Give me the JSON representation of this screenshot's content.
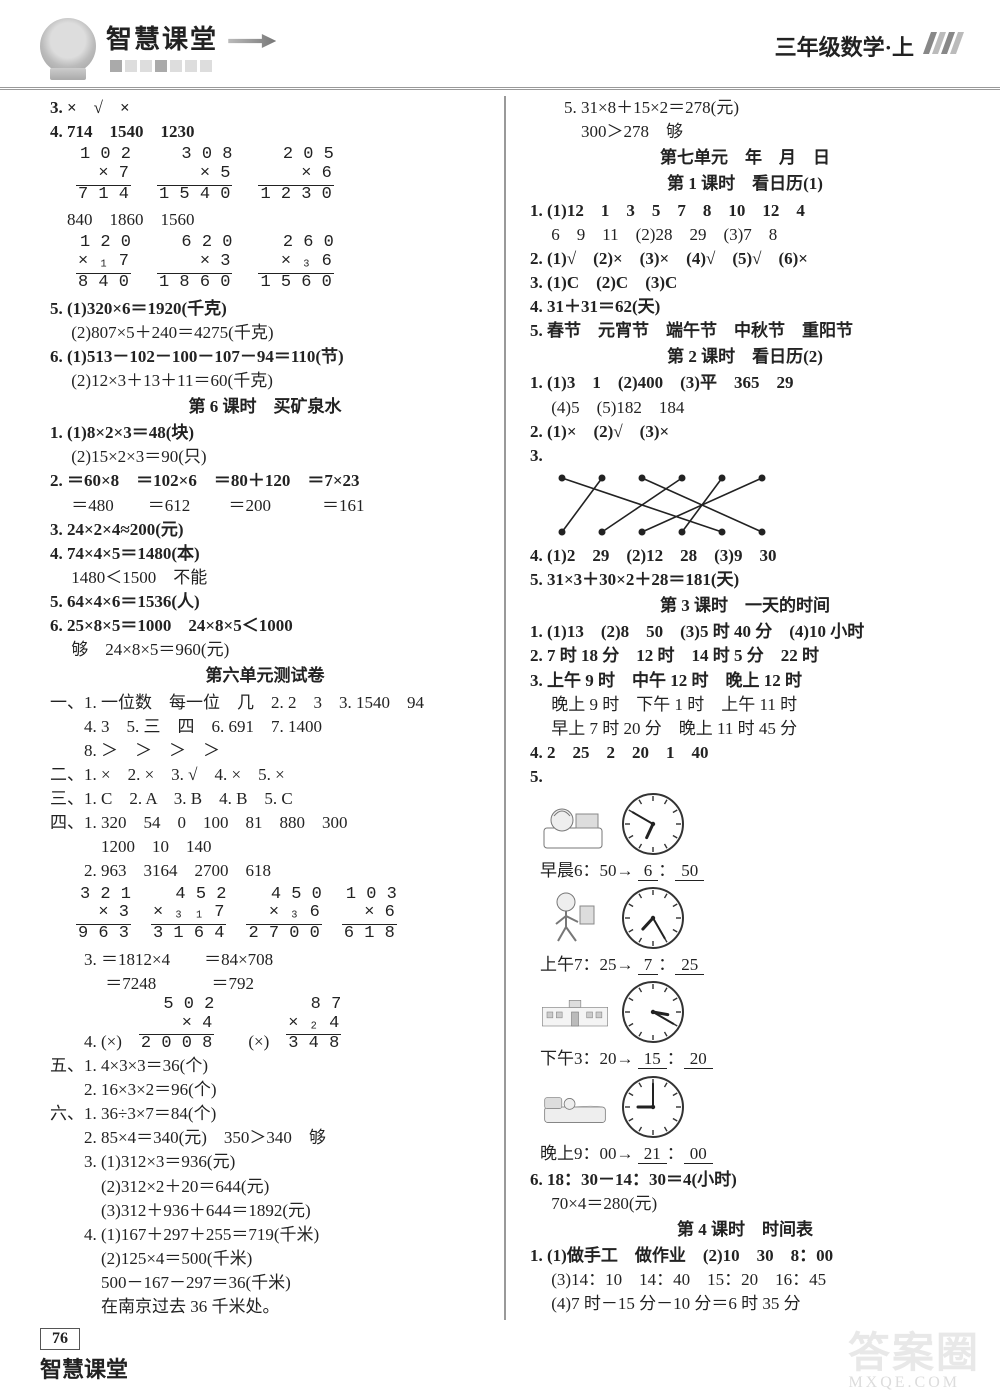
{
  "header": {
    "brand": "智慧课堂",
    "right": "三年级数学·上"
  },
  "footer": {
    "page": "76",
    "brand": "智慧课堂"
  },
  "watermark": {
    "big": "答案圈",
    "url": "MXQE.COM"
  },
  "left": {
    "l3": "3. ×　√　×",
    "l4": "4. 714　1540　1230",
    "m1": [
      {
        "a": "1 0 2",
        "b": "×     7",
        "c": "7 1 4"
      },
      {
        "a": "3 0 8",
        "b": "×     5",
        "c": "1 5 4 0"
      },
      {
        "a": "2 0 5",
        "b": "×     6",
        "c": "1 2 3 0"
      }
    ],
    "l4b": "　840　1860　1560",
    "m2": [
      {
        "a": "1 2 0",
        "b": "× ₁ 7",
        "c": "8 4 0"
      },
      {
        "a": "6 2 0",
        "b": "×     3",
        "c": "1 8 6 0"
      },
      {
        "a": "2 6 0",
        "b": "× ₃ 6",
        "c": "1 5 6 0"
      }
    ],
    "l5a": "5. (1)320×6＝1920(千克)",
    "l5b": "　 (2)807×5＋240＝4275(千克)",
    "l6a": "6. (1)513－102－100－107－94＝110(节)",
    "l6b": "　 (2)12×3＋13＋11＝60(千克)",
    "t6": "第 6 课时　买矿泉水",
    "k1a": "1. (1)8×2×3＝48(块)",
    "k1b": "　 (2)15×2×3＝90(只)",
    "k2a": "2. ＝60×8　＝102×6　＝80＋120　＝7×23",
    "k2b": "　 ＝480　　＝612　　 ＝200　　　＝161",
    "k3": "3. 24×2×4≈200(元)",
    "k4a": "4. 74×4×5＝1480(本)",
    "k4b": "　 1480＜1500　不能",
    "k5": "5. 64×4×6＝1536(人)",
    "k6a": "6. 25×8×5＝1000　24×8×5＜1000",
    "k6b": "　 够　24×8×5＝960(元)",
    "tu": "第六单元测试卷",
    "y1a": "一、1. 一位数　每一位　几　2. 2　3　3. 1540　94",
    "y1b": "　　4. 3　5. 三　四　6. 691　7. 1400",
    "y1c": "　　8. ＞　＞　＞　＞",
    "y2": "二、1. ×　2. ×　3. √　4. ×　5. ×",
    "y3": "三、1. C　2. A　3. B　4. B　5. C",
    "y4a": "四、1. 320　54　0　100　81　880　300",
    "y4b": "　　　1200　10　140",
    "y4c": "　　2. 963　3164　2700　618",
    "m3": [
      {
        "a": "3 2 1",
        "b": "×     3",
        "c": "9 6 3"
      },
      {
        "a": "4 5 2",
        "b": "× ₃ ₁ 7",
        "c": "3 1 6 4"
      },
      {
        "a": "4 5 0",
        "b": "× ₃ 6",
        "c": "2 7 0 0"
      },
      {
        "a": "1 0 3",
        "b": "×     6",
        "c": "6 1 8"
      }
    ],
    "y4d": "　　3. ＝1812×4　　＝84×708",
    "y4e": "　　　 ＝7248　　　 ＝792",
    "m4a": {
      "a": "5 0 2",
      "b": "×     4",
      "c": "2 0 0 8"
    },
    "m4b": {
      "a": "8 7",
      "b": "× ₂ 4",
      "c": "3 4 8"
    },
    "y4f_pre": "　　4. (×)　",
    "y4f_mid": "　　(×)　",
    "y5a": "五、1. 4×3×3＝36(个)",
    "y5b": "　　2. 16×3×2＝96(个)",
    "y6a": "六、1. 36÷3×7＝84(个)",
    "y6b": "　　2. 85×4＝340(元)　350＞340　够",
    "y6c": "　　3. (1)312×3＝936(元)",
    "y6d": "　　　(2)312×2＋20＝644(元)",
    "y6e": "　　　(3)312＋936＋644＝1892(元)",
    "y6f": "　　4. (1)167＋297＋255＝719(千米)",
    "y6g": "　　　(2)125×4＝500(千米)",
    "y6h": "　　　500－167－297＝36(千米)",
    "y6i": "　　　在南京过去 36 千米处。"
  },
  "right": {
    "r5a": "　　5. 31×8＋15×2＝278(元)",
    "r5b": "　　　300＞278　够",
    "tu7": "第七单元　年　月　日",
    "t1": "第 1 课时　看日历(1)",
    "a1a": "1. (1)12　1　3　5　7　8　10　12　4",
    "a1b": "　 6　9　11　(2)28　29　(3)7　8",
    "a2": "2. (1)√　(2)×　(3)×　(4)√　(5)√　(6)×",
    "a3": "3. (1)C　(2)C　(3)C",
    "a4": "4. 31＋31＝62(天)",
    "a5": "5. 春节　元宵节　端午节　中秋节　重阳节",
    "t2": "第 2 课时　看日历(2)",
    "b1a": "1. (1)3　1　(2)400　(3)平　365　29",
    "b1b": "　 (4)5　(5)182　184",
    "b2": "2. (1)×　(2)√　(3)×",
    "b3": "3.",
    "b4": "4. (1)2　29　(2)12　28　(3)9　30",
    "b5": "5. 31×3＋30×2＋28＝181(天)",
    "t3": "第 3 课时　一天的时间",
    "c1": "1. (1)13　(2)8　50　(3)5 时 40 分　(4)10 小时",
    "c2": "2. 7 时 18 分　12 时　14 时 5 分　22 时",
    "c3a": "3. 上午 9 时　中午 12 时　晚上 12 时",
    "c3b": "　 晚上 9 时　下午 1 时　上午 11 时",
    "c3c": "　 早上 7 时 20 分　晚上 11 时 45 分",
    "c4": "4. 2　25　2　20　1　40",
    "c5": "5.",
    "time1": {
      "label": "早晨6：50→",
      "h": "6",
      "m": "50",
      "hh": 6,
      "mm": 50
    },
    "time2": {
      "label": "上午7：25→",
      "h": "7",
      "m": "25",
      "hh": 7,
      "mm": 25
    },
    "time3": {
      "label": "下午3：20→",
      "h": "15",
      "m": "20",
      "hh": 15,
      "mm": 20
    },
    "time4": {
      "label": "晚上9：00→",
      "h": "21",
      "m": "00",
      "hh": 21,
      "mm": 0
    },
    "c6a": "6. 18：30－14：30＝4(小时)",
    "c6b": "　 70×4＝280(元)",
    "t4": "第 4 课时　时间表",
    "d1a": "1. (1)做手工　做作业　(2)10　30　8：00",
    "d1b": "　 (3)14：10　14：40　15：20　16：45",
    "d1c": "　 (4)7 时－15 分－10 分＝6 时 35 分"
  }
}
